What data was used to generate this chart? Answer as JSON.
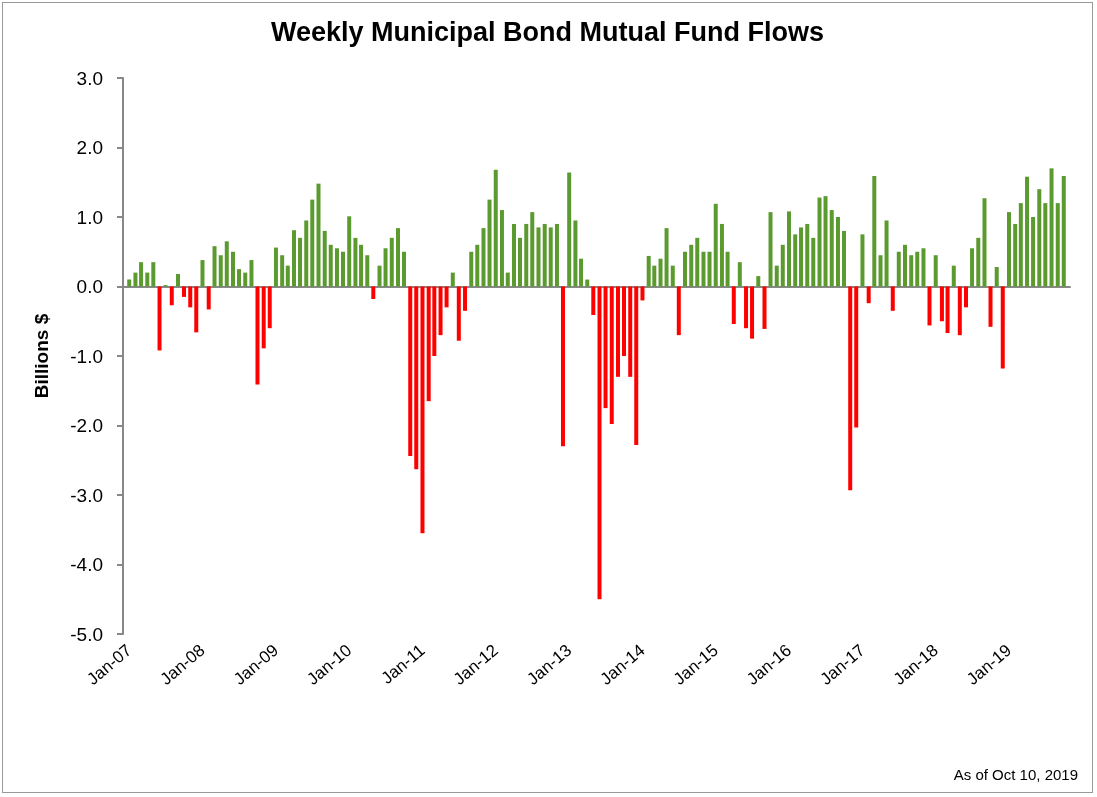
{
  "chart_data": {
    "type": "bar",
    "title": "Weekly Municipal Bond Mutual Fund Flows",
    "ylabel": "Billions $",
    "annotations": [
      "As of Oct 10, 2019"
    ],
    "x": [
      "2007-01",
      "2007-02",
      "2007-03",
      "2007-04",
      "2007-05",
      "2007-06",
      "2007-07",
      "2007-08",
      "2007-09",
      "2007-10",
      "2007-11",
      "2007-12",
      "2008-01",
      "2008-02",
      "2008-03",
      "2008-04",
      "2008-05",
      "2008-06",
      "2008-07",
      "2008-08",
      "2008-09",
      "2008-10",
      "2008-11",
      "2008-12",
      "2009-01",
      "2009-02",
      "2009-03",
      "2009-04",
      "2009-05",
      "2009-06",
      "2009-07",
      "2009-08",
      "2009-09",
      "2009-10",
      "2009-11",
      "2009-12",
      "2010-01",
      "2010-02",
      "2010-03",
      "2010-04",
      "2010-05",
      "2010-06",
      "2010-07",
      "2010-08",
      "2010-09",
      "2010-10",
      "2010-11",
      "2010-12",
      "2011-01",
      "2011-02",
      "2011-03",
      "2011-04",
      "2011-05",
      "2011-06",
      "2011-07",
      "2011-08",
      "2011-09",
      "2011-10",
      "2011-11",
      "2011-12",
      "2012-01",
      "2012-02",
      "2012-03",
      "2012-04",
      "2012-05",
      "2012-06",
      "2012-07",
      "2012-08",
      "2012-09",
      "2012-10",
      "2012-11",
      "2012-12",
      "2013-01",
      "2013-02",
      "2013-03",
      "2013-04",
      "2013-05",
      "2013-06",
      "2013-07",
      "2013-08",
      "2013-09",
      "2013-10",
      "2013-11",
      "2013-12",
      "2014-01",
      "2014-02",
      "2014-03",
      "2014-04",
      "2014-05",
      "2014-06",
      "2014-07",
      "2014-08",
      "2014-09",
      "2014-10",
      "2014-11",
      "2014-12",
      "2015-01",
      "2015-02",
      "2015-03",
      "2015-04",
      "2015-05",
      "2015-06",
      "2015-07",
      "2015-08",
      "2015-09",
      "2015-10",
      "2015-11",
      "2015-12",
      "2016-01",
      "2016-02",
      "2016-03",
      "2016-04",
      "2016-05",
      "2016-06",
      "2016-07",
      "2016-08",
      "2016-09",
      "2016-10",
      "2016-11",
      "2016-12",
      "2017-01",
      "2017-02",
      "2017-03",
      "2017-04",
      "2017-05",
      "2017-06",
      "2017-07",
      "2017-08",
      "2017-09",
      "2017-10",
      "2017-11",
      "2017-12",
      "2018-01",
      "2018-02",
      "2018-03",
      "2018-04",
      "2018-05",
      "2018-06",
      "2018-07",
      "2018-08",
      "2018-09",
      "2018-10",
      "2018-11",
      "2018-12",
      "2019-01",
      "2019-02",
      "2019-03",
      "2019-04",
      "2019-05",
      "2019-06",
      "2019-07",
      "2019-08",
      "2019-09",
      "2019-10"
    ],
    "values": [
      0.1,
      0.2,
      0.35,
      0.2,
      0.35,
      -0.92,
      0.02,
      -0.27,
      0.18,
      -0.15,
      -0.3,
      -0.66,
      0.38,
      -0.33,
      0.58,
      0.45,
      0.65,
      0.5,
      0.25,
      0.2,
      0.38,
      -1.41,
      -0.89,
      -0.6,
      0.56,
      0.45,
      0.3,
      0.81,
      0.7,
      0.95,
      1.25,
      1.48,
      0.8,
      0.6,
      0.55,
      0.5,
      1.01,
      0.7,
      0.6,
      0.45,
      -0.18,
      0.3,
      0.55,
      0.7,
      0.84,
      0.5,
      -2.44,
      -2.63,
      -3.55,
      -1.65,
      -1.0,
      -0.7,
      -0.3,
      0.2,
      -0.78,
      -0.35,
      0.5,
      0.6,
      0.84,
      1.25,
      1.68,
      1.1,
      0.2,
      0.9,
      0.7,
      0.9,
      1.07,
      0.85,
      0.9,
      0.85,
      0.9,
      -2.3,
      1.64,
      0.95,
      0.4,
      0.1,
      -0.41,
      -4.5,
      -1.75,
      -1.98,
      -1.3,
      -1.0,
      -1.3,
      -2.28,
      -0.2,
      0.44,
      0.3,
      0.4,
      0.84,
      0.3,
      -0.7,
      0.5,
      0.6,
      0.7,
      0.5,
      0.5,
      1.19,
      0.9,
      0.5,
      -0.54,
      0.35,
      -0.6,
      -0.75,
      0.15,
      -0.61,
      1.07,
      0.3,
      0.6,
      1.08,
      0.75,
      0.85,
      0.9,
      0.7,
      1.28,
      1.3,
      1.1,
      1.0,
      0.8,
      -2.93,
      -2.03,
      0.75,
      -0.24,
      1.59,
      0.45,
      0.95,
      -0.35,
      0.5,
      0.6,
      0.45,
      0.5,
      0.55,
      -0.56,
      0.45,
      -0.5,
      -0.67,
      0.3,
      -0.7,
      -0.3,
      0.55,
      0.7,
      1.27,
      -0.58,
      0.28,
      -1.18,
      1.07,
      0.9,
      1.2,
      1.58,
      1.0,
      1.4,
      1.2,
      1.7,
      1.2,
      1.59
    ],
    "colors": [
      "#5b9a2f",
      "#5b9a2f",
      "#5b9a2f",
      "#5b9a2f",
      "#5b9a2f",
      "#ff0000",
      "#5b9a2f",
      "#ff0000",
      "#5b9a2f",
      "#ff0000",
      "#ff0000",
      "#ff0000",
      "#5b9a2f",
      "#ff0000",
      "#5b9a2f",
      "#5b9a2f",
      "#5b9a2f",
      "#5b9a2f",
      "#5b9a2f",
      "#5b9a2f",
      "#5b9a2f",
      "#ff0000",
      "#ff0000",
      "#ff0000",
      "#5b9a2f",
      "#5b9a2f",
      "#5b9a2f",
      "#5b9a2f",
      "#5b9a2f",
      "#5b9a2f",
      "#5b9a2f",
      "#5b9a2f",
      "#5b9a2f",
      "#5b9a2f",
      "#5b9a2f",
      "#5b9a2f",
      "#5b9a2f",
      "#5b9a2f",
      "#5b9a2f",
      "#5b9a2f",
      "#ff0000",
      "#5b9a2f",
      "#5b9a2f",
      "#5b9a2f",
      "#5b9a2f",
      "#5b9a2f",
      "#ff0000",
      "#ff0000",
      "#ff0000",
      "#ff0000",
      "#ff0000",
      "#ff0000",
      "#ff0000",
      "#5b9a2f",
      "#ff0000",
      "#ff0000",
      "#5b9a2f",
      "#5b9a2f",
      "#5b9a2f",
      "#5b9a2f",
      "#5b9a2f",
      "#5b9a2f",
      "#5b9a2f",
      "#5b9a2f",
      "#5b9a2f",
      "#5b9a2f",
      "#5b9a2f",
      "#5b9a2f",
      "#5b9a2f",
      "#5b9a2f",
      "#5b9a2f",
      "#ff0000",
      "#5b9a2f",
      "#5b9a2f",
      "#5b9a2f",
      "#5b9a2f",
      "#ff0000",
      "#ff0000",
      "#ff0000",
      "#ff0000",
      "#ff0000",
      "#ff0000",
      "#ff0000",
      "#ff0000",
      "#ff0000",
      "#5b9a2f",
      "#5b9a2f",
      "#5b9a2f",
      "#5b9a2f",
      "#5b9a2f",
      "#ff0000",
      "#5b9a2f",
      "#5b9a2f",
      "#5b9a2f",
      "#5b9a2f",
      "#5b9a2f",
      "#5b9a2f",
      "#5b9a2f",
      "#5b9a2f",
      "#ff0000",
      "#5b9a2f",
      "#ff0000",
      "#ff0000",
      "#5b9a2f",
      "#ff0000",
      "#5b9a2f",
      "#5b9a2f",
      "#5b9a2f",
      "#5b9a2f",
      "#5b9a2f",
      "#5b9a2f",
      "#5b9a2f",
      "#5b9a2f",
      "#5b9a2f",
      "#5b9a2f",
      "#5b9a2f",
      "#5b9a2f",
      "#5b9a2f",
      "#ff0000",
      "#ff0000",
      "#5b9a2f",
      "#ff0000",
      "#5b9a2f",
      "#5b9a2f",
      "#5b9a2f",
      "#ff0000",
      "#5b9a2f",
      "#5b9a2f",
      "#5b9a2f",
      "#5b9a2f",
      "#5b9a2f",
      "#ff0000",
      "#5b9a2f",
      "#ff0000",
      "#ff0000",
      "#5b9a2f",
      "#ff0000",
      "#ff0000",
      "#5b9a2f",
      "#5b9a2f",
      "#5b9a2f",
      "#ff0000",
      "#5b9a2f",
      "#ff0000",
      "#5b9a2f",
      "#5b9a2f",
      "#5b9a2f",
      "#5b9a2f",
      "#5b9a2f",
      "#5b9a2f",
      "#5b9a2f",
      "#5b9a2f",
      "#5b9a2f",
      "#5b9a2f"
    ],
    "xlim": [
      "2006-12",
      "2019-11"
    ],
    "xticks": [
      {
        "value": "2007-01",
        "label": "Jan-07"
      },
      {
        "value": "2008-01",
        "label": "Jan-08"
      },
      {
        "value": "2009-01",
        "label": "Jan-09"
      },
      {
        "value": "2010-01",
        "label": "Jan-10"
      },
      {
        "value": "2011-01",
        "label": "Jan-11"
      },
      {
        "value": "2012-01",
        "label": "Jan-12"
      },
      {
        "value": "2013-01",
        "label": "Jan-13"
      },
      {
        "value": "2014-01",
        "label": "Jan-14"
      },
      {
        "value": "2015-01",
        "label": "Jan-15"
      },
      {
        "value": "2016-01",
        "label": "Jan-16"
      },
      {
        "value": "2017-01",
        "label": "Jan-17"
      },
      {
        "value": "2018-01",
        "label": "Jan-18"
      },
      {
        "value": "2019-01",
        "label": "Jan-19"
      }
    ],
    "ylim": [
      -5,
      3
    ],
    "yticks": [
      {
        "value": -5,
        "label": "-5.0"
      },
      {
        "value": -4,
        "label": "-4.0"
      },
      {
        "value": -3,
        "label": "-3.0"
      },
      {
        "value": -2,
        "label": "-2.0"
      },
      {
        "value": -1,
        "label": "-1.0"
      },
      {
        "value": 0,
        "label": "0.0"
      },
      {
        "value": 1,
        "label": "1.0"
      },
      {
        "value": 2,
        "label": "2.0"
      },
      {
        "value": 3,
        "label": "3.0"
      }
    ],
    "tick_labels": true
  }
}
